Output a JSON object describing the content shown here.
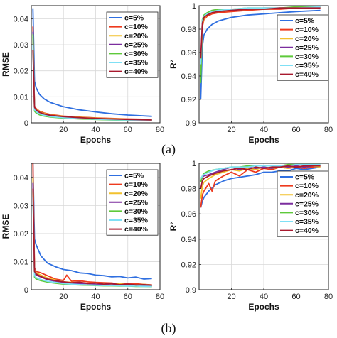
{
  "panel_labels": [
    "(a)",
    "(b)"
  ],
  "legend_entries": [
    "c=5%",
    "c=10%",
    "c=20%",
    "c=25%",
    "c=30%",
    "c=35%",
    "c=40%"
  ],
  "series_colors": [
    "#2f6fe0",
    "#ee3a1e",
    "#f2c12e",
    "#7b2d9e",
    "#5ec93a",
    "#7fe0f5",
    "#a8192e"
  ],
  "chart_data": [
    {
      "id": "a-rmse",
      "panel": "(a)",
      "type": "line",
      "xlabel": "Epochs",
      "ylabel": "RMSE",
      "xlim": [
        0,
        80
      ],
      "ylim": [
        0,
        0.045
      ],
      "xticks": [
        20,
        40,
        60,
        80
      ],
      "yticks": [
        0,
        0.01,
        0.02,
        0.03,
        0.04
      ],
      "grid": true,
      "legend": "top-right",
      "series": [
        {
          "name": "c=5%",
          "x": [
            1,
            2,
            3,
            5,
            8,
            12,
            20,
            30,
            40,
            50,
            60,
            75
          ],
          "y": [
            0.044,
            0.016,
            0.0135,
            0.011,
            0.0092,
            0.0078,
            0.0062,
            0.005,
            0.0042,
            0.0035,
            0.003,
            0.0025
          ]
        },
        {
          "name": "c=10%",
          "x": [
            1,
            2,
            3,
            5,
            8,
            12,
            20,
            30,
            40,
            50,
            60,
            75
          ],
          "y": [
            0.037,
            0.0065,
            0.0055,
            0.0045,
            0.0038,
            0.0032,
            0.0026,
            0.0022,
            0.0019,
            0.0017,
            0.0015,
            0.0013
          ]
        },
        {
          "name": "c=20%",
          "x": [
            1,
            2,
            3,
            5,
            8,
            12,
            20,
            30,
            40,
            50,
            60,
            75
          ],
          "y": [
            0.033,
            0.006,
            0.0052,
            0.0043,
            0.0036,
            0.003,
            0.0025,
            0.0021,
            0.0018,
            0.0016,
            0.0014,
            0.0012
          ]
        },
        {
          "name": "c=25%",
          "x": [
            1,
            2,
            3,
            5,
            8,
            12,
            20,
            30,
            40,
            50,
            60,
            75
          ],
          "y": [
            0.035,
            0.0055,
            0.0048,
            0.004,
            0.0033,
            0.0028,
            0.0023,
            0.0019,
            0.0016,
            0.0014,
            0.0012,
            0.001
          ]
        },
        {
          "name": "c=30%",
          "x": [
            1,
            2,
            3,
            5,
            8,
            12,
            20,
            30,
            40,
            50,
            60,
            75
          ],
          "y": [
            0.034,
            0.0045,
            0.0038,
            0.0031,
            0.0026,
            0.0022,
            0.0018,
            0.0015,
            0.0013,
            0.0011,
            0.001,
            0.0009
          ]
        },
        {
          "name": "c=35%",
          "x": [
            1,
            2,
            3,
            5,
            8,
            12,
            20,
            30,
            40,
            50,
            60,
            75
          ],
          "y": [
            0.03,
            0.005,
            0.0043,
            0.0035,
            0.0029,
            0.0024,
            0.002,
            0.0017,
            0.0014,
            0.0012,
            0.0011,
            0.001
          ]
        },
        {
          "name": "c=40%",
          "x": [
            1,
            2,
            3,
            5,
            8,
            12,
            20,
            30,
            40,
            50,
            60,
            75
          ],
          "y": [
            0.028,
            0.006,
            0.005,
            0.0041,
            0.0034,
            0.0029,
            0.0024,
            0.002,
            0.0017,
            0.0015,
            0.0013,
            0.0011
          ]
        }
      ]
    },
    {
      "id": "a-r2",
      "panel": "(a)",
      "type": "line",
      "xlabel": "Epochs",
      "ylabel": "R²",
      "xlim": [
        0,
        80
      ],
      "ylim": [
        0.9,
        1.0
      ],
      "xticks": [
        20,
        40,
        60,
        80
      ],
      "yticks": [
        0.9,
        0.92,
        0.94,
        0.96,
        0.98,
        1
      ],
      "grid": true,
      "legend": "right",
      "series": [
        {
          "name": "c=5%",
          "x": [
            1,
            2,
            3,
            5,
            8,
            12,
            20,
            30,
            40,
            50,
            60,
            75
          ],
          "y": [
            0.92,
            0.965,
            0.975,
            0.98,
            0.984,
            0.987,
            0.99,
            0.992,
            0.993,
            0.994,
            0.995,
            0.996
          ]
        },
        {
          "name": "c=10%",
          "x": [
            1,
            2,
            3,
            5,
            8,
            12,
            20,
            30,
            40,
            50,
            60,
            75
          ],
          "y": [
            0.94,
            0.982,
            0.988,
            0.991,
            0.993,
            0.994,
            0.995,
            0.996,
            0.997,
            0.997,
            0.998,
            0.998
          ]
        },
        {
          "name": "c=20%",
          "x": [
            1,
            2,
            3,
            5,
            8,
            12,
            20,
            30,
            40,
            50,
            60,
            75
          ],
          "y": [
            0.945,
            0.984,
            0.989,
            0.992,
            0.994,
            0.995,
            0.996,
            0.997,
            0.997,
            0.998,
            0.998,
            0.998
          ]
        },
        {
          "name": "c=25%",
          "x": [
            1,
            2,
            3,
            5,
            8,
            12,
            20,
            30,
            40,
            50,
            60,
            75
          ],
          "y": [
            0.947,
            0.986,
            0.99,
            0.993,
            0.995,
            0.996,
            0.997,
            0.997,
            0.998,
            0.998,
            0.998,
            0.999
          ]
        },
        {
          "name": "c=30%",
          "x": [
            1,
            2,
            3,
            5,
            8,
            12,
            20,
            30,
            40,
            50,
            60,
            75
          ],
          "y": [
            0.934,
            0.988,
            0.992,
            0.994,
            0.996,
            0.997,
            0.997,
            0.998,
            0.998,
            0.998,
            0.999,
            0.999
          ]
        },
        {
          "name": "c=35%",
          "x": [
            1,
            2,
            3,
            5,
            8,
            12,
            20,
            30,
            40,
            50,
            60,
            75
          ],
          "y": [
            0.95,
            0.987,
            0.991,
            0.993,
            0.995,
            0.996,
            0.997,
            0.998,
            0.998,
            0.998,
            0.998,
            0.999
          ]
        },
        {
          "name": "c=40%",
          "x": [
            1,
            2,
            3,
            5,
            8,
            12,
            20,
            30,
            40,
            50,
            60,
            75
          ],
          "y": [
            0.955,
            0.985,
            0.99,
            0.992,
            0.994,
            0.995,
            0.996,
            0.997,
            0.997,
            0.998,
            0.998,
            0.998
          ]
        }
      ]
    },
    {
      "id": "b-rmse",
      "panel": "(b)",
      "type": "line",
      "xlabel": "Epochs",
      "ylabel": "RMSE",
      "xlim": [
        0,
        80
      ],
      "ylim": [
        0,
        0.045
      ],
      "xticks": [
        20,
        40,
        60,
        80
      ],
      "yticks": [
        0,
        0.01,
        0.02,
        0.03,
        0.04
      ],
      "grid": true,
      "legend": "top-right",
      "series": [
        {
          "name": "c=5%",
          "x": [
            1,
            2,
            3,
            6,
            10,
            15,
            20,
            25,
            30,
            35,
            40,
            45,
            50,
            55,
            60,
            65,
            70,
            75
          ],
          "y": [
            0.045,
            0.018,
            0.016,
            0.012,
            0.0095,
            0.0082,
            0.0072,
            0.0068,
            0.006,
            0.0058,
            0.0052,
            0.005,
            0.0046,
            0.0047,
            0.0042,
            0.0045,
            0.0038,
            0.004
          ]
        },
        {
          "name": "c=10%",
          "x": [
            1,
            2,
            3,
            6,
            10,
            15,
            20,
            22,
            25,
            30,
            35,
            40,
            45,
            50,
            55,
            60,
            65,
            70,
            75
          ],
          "y": [
            0.045,
            0.008,
            0.0065,
            0.006,
            0.005,
            0.0038,
            0.0033,
            0.0052,
            0.003,
            0.0032,
            0.0028,
            0.0026,
            0.0025,
            0.0024,
            0.002,
            0.0022,
            0.0021,
            0.0019,
            0.0017
          ]
        },
        {
          "name": "c=20%",
          "x": [
            1,
            2,
            3,
            6,
            10,
            15,
            20,
            25,
            30,
            35,
            40,
            45,
            50,
            55,
            60,
            65,
            70,
            75
          ],
          "y": [
            0.04,
            0.007,
            0.006,
            0.0052,
            0.0042,
            0.0035,
            0.0028,
            0.0026,
            0.0024,
            0.0022,
            0.002,
            0.0023,
            0.0019,
            0.0021,
            0.0018,
            0.0017,
            0.0019,
            0.0016
          ]
        },
        {
          "name": "c=25%",
          "x": [
            1,
            2,
            3,
            6,
            10,
            15,
            20,
            25,
            30,
            35,
            40,
            45,
            50,
            55,
            60,
            65,
            70,
            75
          ],
          "y": [
            0.038,
            0.006,
            0.0052,
            0.0045,
            0.0036,
            0.003,
            0.0026,
            0.0023,
            0.0021,
            0.0022,
            0.0019,
            0.0018,
            0.0021,
            0.0016,
            0.0018,
            0.0015,
            0.0016,
            0.0014
          ]
        },
        {
          "name": "c=30%",
          "x": [
            1,
            2,
            3,
            6,
            10,
            15,
            20,
            25,
            30,
            35,
            40,
            45,
            50,
            55,
            60,
            65,
            70,
            75
          ],
          "y": [
            0.035,
            0.0045,
            0.0038,
            0.0032,
            0.0027,
            0.0023,
            0.002,
            0.0018,
            0.0017,
            0.0016,
            0.0015,
            0.0014,
            0.0014,
            0.0013,
            0.0013,
            0.0012,
            0.0012,
            0.0011
          ]
        },
        {
          "name": "c=35%",
          "x": [
            1,
            2,
            3,
            6,
            10,
            15,
            20,
            25,
            30,
            35,
            40,
            45,
            50,
            55,
            60,
            65,
            70,
            75
          ],
          "y": [
            0.033,
            0.005,
            0.0043,
            0.0036,
            0.003,
            0.0026,
            0.0022,
            0.002,
            0.0018,
            0.0017,
            0.0016,
            0.0015,
            0.0015,
            0.0014,
            0.0013,
            0.0013,
            0.0012,
            0.0012
          ]
        },
        {
          "name": "c=40%",
          "x": [
            1,
            2,
            3,
            6,
            10,
            15,
            20,
            25,
            30,
            35,
            40,
            45,
            50,
            55,
            60,
            65,
            70,
            75
          ],
          "y": [
            0.036,
            0.0065,
            0.0056,
            0.0047,
            0.0038,
            0.0032,
            0.0028,
            0.0025,
            0.0027,
            0.0022,
            0.0024,
            0.002,
            0.0022,
            0.0018,
            0.002,
            0.0017,
            0.0018,
            0.0016
          ]
        }
      ]
    },
    {
      "id": "b-r2",
      "panel": "(b)",
      "type": "line",
      "xlabel": "Epochs",
      "ylabel": "R²",
      "xlim": [
        0,
        80
      ],
      "ylim": [
        0.9,
        1.0
      ],
      "xticks": [
        20,
        40,
        60,
        80
      ],
      "yticks": [
        0.9,
        0.92,
        0.94,
        0.96,
        0.98,
        1
      ],
      "grid": true,
      "legend": "right",
      "series": [
        {
          "name": "c=5%",
          "x": [
            1,
            2,
            3,
            6,
            10,
            15,
            20,
            25,
            30,
            35,
            40,
            45,
            50,
            55,
            60,
            65,
            70,
            75
          ],
          "y": [
            0.965,
            0.97,
            0.973,
            0.978,
            0.983,
            0.986,
            0.988,
            0.989,
            0.99,
            0.991,
            0.993,
            0.993,
            0.994,
            0.994,
            0.996,
            0.995,
            0.996,
            0.997
          ]
        },
        {
          "name": "c=10%",
          "x": [
            1,
            2,
            3,
            6,
            8,
            10,
            15,
            20,
            25,
            30,
            35,
            40,
            45,
            50,
            55,
            60,
            65,
            70,
            75
          ],
          "y": [
            0.965,
            0.975,
            0.978,
            0.984,
            0.978,
            0.986,
            0.99,
            0.993,
            0.99,
            0.995,
            0.993,
            0.996,
            0.995,
            0.997,
            0.996,
            0.997,
            0.996,
            0.997,
            0.998
          ]
        },
        {
          "name": "c=20%",
          "x": [
            1,
            2,
            3,
            6,
            10,
            15,
            20,
            25,
            30,
            35,
            40,
            45,
            50,
            55,
            60,
            65,
            70,
            75
          ],
          "y": [
            0.972,
            0.982,
            0.985,
            0.988,
            0.991,
            0.993,
            0.995,
            0.994,
            0.996,
            0.995,
            0.997,
            0.996,
            0.997,
            0.996,
            0.998,
            0.997,
            0.998,
            0.997
          ]
        },
        {
          "name": "c=25%",
          "x": [
            1,
            2,
            3,
            6,
            10,
            15,
            20,
            25,
            30,
            35,
            40,
            45,
            50,
            55,
            60,
            65,
            70,
            75
          ],
          "y": [
            0.985,
            0.989,
            0.99,
            0.991,
            0.993,
            0.995,
            0.997,
            0.995,
            0.997,
            0.996,
            0.997,
            0.996,
            0.998,
            0.997,
            0.998,
            0.997,
            0.998,
            0.998
          ]
        },
        {
          "name": "c=30%",
          "x": [
            1,
            2,
            3,
            6,
            10,
            15,
            20,
            25,
            30,
            35,
            40,
            45,
            50,
            55,
            60,
            65,
            70,
            75
          ],
          "y": [
            0.985,
            0.99,
            0.992,
            0.994,
            0.995,
            0.996,
            0.997,
            0.997,
            0.998,
            0.998,
            0.998,
            0.998,
            0.998,
            0.999,
            0.999,
            0.999,
            0.999,
            0.999
          ]
        },
        {
          "name": "c=35%",
          "x": [
            1,
            2,
            3,
            6,
            10,
            15,
            20,
            25,
            30,
            35,
            40,
            45,
            50,
            55,
            60,
            65,
            70,
            75
          ],
          "y": [
            0.988,
            0.99,
            0.991,
            0.993,
            0.995,
            0.996,
            0.997,
            0.997,
            0.997,
            0.998,
            0.998,
            0.998,
            0.998,
            0.998,
            0.999,
            0.999,
            0.999,
            0.999
          ]
        },
        {
          "name": "c=40%",
          "x": [
            1,
            2,
            3,
            6,
            10,
            15,
            20,
            25,
            30,
            35,
            40,
            45,
            50,
            55,
            60,
            65,
            70,
            75
          ],
          "y": [
            0.98,
            0.986,
            0.988,
            0.99,
            0.992,
            0.994,
            0.995,
            0.996,
            0.995,
            0.997,
            0.996,
            0.997,
            0.997,
            0.998,
            0.997,
            0.998,
            0.998,
            0.998
          ]
        }
      ]
    }
  ]
}
